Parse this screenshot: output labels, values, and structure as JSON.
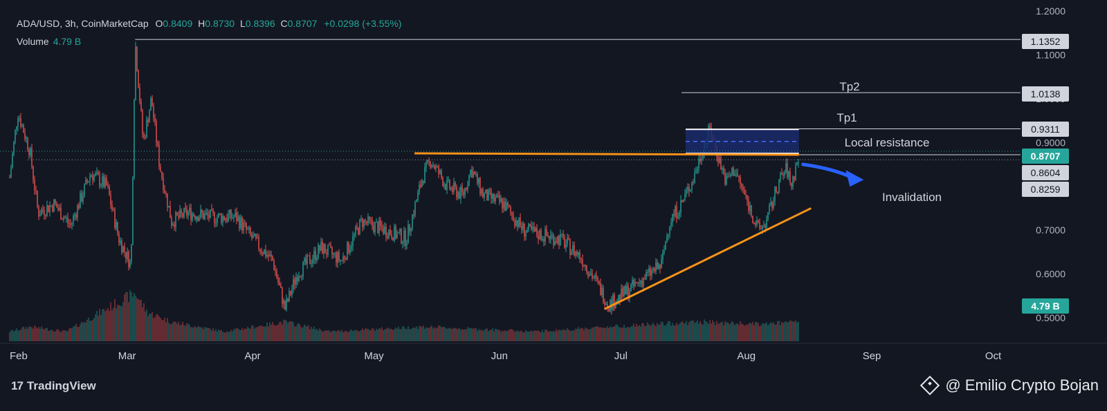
{
  "legend": {
    "symbol": "ADA/USD, 3h, CoinMarketCap",
    "o_label": "O",
    "o": "0.8409",
    "h_label": "H",
    "h": "0.8730",
    "l_label": "L",
    "l": "0.8396",
    "c_label": "C",
    "c": "0.8707",
    "change": "+0.0298 (+3.55%)",
    "volume_label": "Volume",
    "volume": "4.79 B"
  },
  "colors": {
    "background": "#131722",
    "up": "#26a69a",
    "down": "#ef5350",
    "trendline": "#f7931a",
    "zone": "#1a2a6b",
    "arrow": "#2962ff",
    "text": "#d1d4dc"
  },
  "chart_data": {
    "type": "candlestick",
    "x_months": [
      "Feb",
      "Mar",
      "Apr",
      "May",
      "Jun",
      "Jul",
      "Aug",
      "Sep",
      "Oct"
    ],
    "y_ticks": [
      "1.2000",
      "1.1000",
      "1.0000",
      "0.9000",
      "0.8000",
      "0.7000",
      "0.6000",
      "0.5000"
    ],
    "ylim": [
      0.455,
      1.2
    ],
    "price_path": [
      {
        "date": "2024-02-01",
        "price": 0.82
      },
      {
        "date": "2024-02-03",
        "price": 0.97
      },
      {
        "date": "2024-02-06",
        "price": 0.88
      },
      {
        "date": "2024-02-08",
        "price": 0.74
      },
      {
        "date": "2024-02-12",
        "price": 0.76
      },
      {
        "date": "2024-02-16",
        "price": 0.71
      },
      {
        "date": "2024-02-21",
        "price": 0.83
      },
      {
        "date": "2024-02-25",
        "price": 0.8
      },
      {
        "date": "2024-02-28",
        "price": 0.68
      },
      {
        "date": "2024-03-02",
        "price": 0.62
      },
      {
        "date": "2024-03-03",
        "price": 1.13
      },
      {
        "date": "2024-03-05",
        "price": 0.9
      },
      {
        "date": "2024-03-07",
        "price": 1.0
      },
      {
        "date": "2024-03-09",
        "price": 0.85
      },
      {
        "date": "2024-03-12",
        "price": 0.72
      },
      {
        "date": "2024-03-16",
        "price": 0.74
      },
      {
        "date": "2024-03-22",
        "price": 0.73
      },
      {
        "date": "2024-03-28",
        "price": 0.73
      },
      {
        "date": "2024-04-01",
        "price": 0.68
      },
      {
        "date": "2024-04-06",
        "price": 0.63
      },
      {
        "date": "2024-04-09",
        "price": 0.52
      },
      {
        "date": "2024-04-12",
        "price": 0.6
      },
      {
        "date": "2024-04-18",
        "price": 0.66
      },
      {
        "date": "2024-04-23",
        "price": 0.63
      },
      {
        "date": "2024-04-28",
        "price": 0.72
      },
      {
        "date": "2024-05-04",
        "price": 0.7
      },
      {
        "date": "2024-05-09",
        "price": 0.68
      },
      {
        "date": "2024-05-13",
        "price": 0.82
      },
      {
        "date": "2024-05-15",
        "price": 0.86
      },
      {
        "date": "2024-05-19",
        "price": 0.8
      },
      {
        "date": "2024-05-23",
        "price": 0.78
      },
      {
        "date": "2024-05-25",
        "price": 0.84
      },
      {
        "date": "2024-05-28",
        "price": 0.78
      },
      {
        "date": "2024-06-02",
        "price": 0.76
      },
      {
        "date": "2024-06-07",
        "price": 0.7
      },
      {
        "date": "2024-06-11",
        "price": 0.69
      },
      {
        "date": "2024-06-16",
        "price": 0.68
      },
      {
        "date": "2024-06-21",
        "price": 0.64
      },
      {
        "date": "2024-06-25",
        "price": 0.58
      },
      {
        "date": "2024-06-28",
        "price": 0.53
      },
      {
        "date": "2024-07-01",
        "price": 0.55
      },
      {
        "date": "2024-07-04",
        "price": 0.57
      },
      {
        "date": "2024-07-08",
        "price": 0.6
      },
      {
        "date": "2024-07-11",
        "price": 0.62
      },
      {
        "date": "2024-07-13",
        "price": 0.72
      },
      {
        "date": "2024-07-16",
        "price": 0.76
      },
      {
        "date": "2024-07-19",
        "price": 0.82
      },
      {
        "date": "2024-07-21",
        "price": 0.88
      },
      {
        "date": "2024-07-23",
        "price": 0.93
      },
      {
        "date": "2024-07-25",
        "price": 0.87
      },
      {
        "date": "2024-07-27",
        "price": 0.81
      },
      {
        "date": "2024-07-29",
        "price": 0.84
      },
      {
        "date": "2024-08-01",
        "price": 0.77
      },
      {
        "date": "2024-08-04",
        "price": 0.7
      },
      {
        "date": "2024-08-06",
        "price": 0.72
      },
      {
        "date": "2024-08-09",
        "price": 0.81
      },
      {
        "date": "2024-08-11",
        "price": 0.84
      },
      {
        "date": "2024-08-12",
        "price": 0.8
      },
      {
        "date": "2024-08-14",
        "price": 0.87
      }
    ],
    "volume_path": [
      {
        "date": "2024-02-01",
        "volume": 0.2
      },
      {
        "date": "2024-02-06",
        "volume": 0.3
      },
      {
        "date": "2024-02-15",
        "volume": 0.2
      },
      {
        "date": "2024-03-03",
        "volume": 1.0
      },
      {
        "date": "2024-03-06",
        "volume": 0.6
      },
      {
        "date": "2024-03-12",
        "volume": 0.4
      },
      {
        "date": "2024-03-25",
        "volume": 0.2
      },
      {
        "date": "2024-04-09",
        "volume": 0.4
      },
      {
        "date": "2024-04-20",
        "volume": 0.2
      },
      {
        "date": "2024-05-13",
        "volume": 0.3
      },
      {
        "date": "2024-06-10",
        "volume": 0.2
      },
      {
        "date": "2024-06-28",
        "volume": 0.3
      },
      {
        "date": "2024-07-20",
        "volume": 0.4
      },
      {
        "date": "2024-08-04",
        "volume": 0.35
      },
      {
        "date": "2024-08-14",
        "volume": 0.4
      }
    ],
    "levels": [
      {
        "value": "1.1352",
        "kind": "line-white"
      },
      {
        "value": "1.0138",
        "kind": "line-white"
      },
      {
        "value": "0.9311",
        "kind": "line-white"
      },
      {
        "value": "0.8707",
        "kind": "current-price"
      },
      {
        "value": "0.8604",
        "kind": "dotted"
      },
      {
        "value": "0.8259",
        "kind": "label"
      }
    ],
    "volume_badge": "4.79 B",
    "annotations": [
      {
        "text": "Tp2"
      },
      {
        "text": "Tp1"
      },
      {
        "text": "Local resistance"
      },
      {
        "text": "Invalidation"
      }
    ],
    "resistance_line": {
      "from": {
        "date": "2024-05-11",
        "price": 0.872
      },
      "to": {
        "date": "2024-08-14",
        "price": 0.872
      }
    },
    "support_trendline": {
      "from": {
        "date": "2024-06-27",
        "price": 0.52
      },
      "to": {
        "date": "2024-08-17",
        "price": 0.75
      }
    },
    "resistance_zone": {
      "from_date": "2024-07-17",
      "to_date": "2024-08-14",
      "top": 0.93,
      "bottom": 0.875
    }
  },
  "footer": {
    "brand": "TradingView",
    "brand_mark": "17",
    "author": "@ Emilio Crypto Bojan"
  }
}
